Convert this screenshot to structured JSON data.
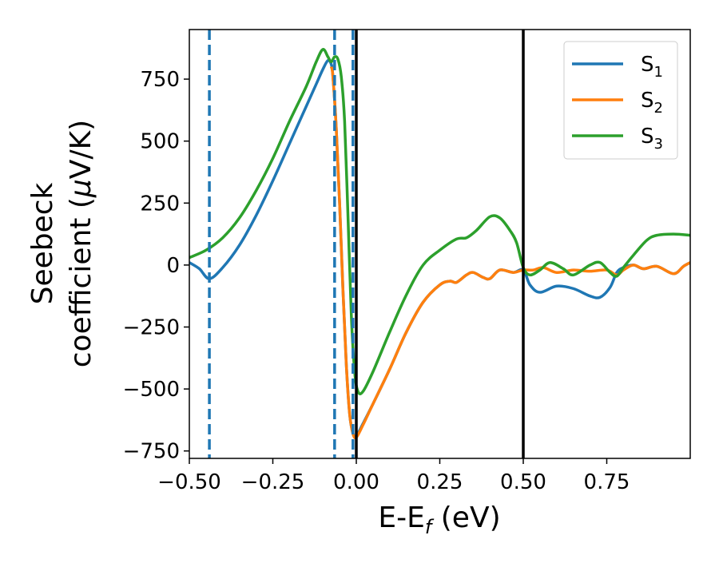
{
  "chart_data": {
    "type": "line",
    "xlabel": "E-E",
    "xlabel_sub": "f",
    "xlabel_unit": " (eV)",
    "ylabel_line1": "Seebeck",
    "ylabel_line2": "coefficient  (",
    "ylabel_mu": "μ",
    "ylabel_line2_end": "V/K)",
    "xlim": [
      -0.5,
      1.0
    ],
    "ylim": [
      -780,
      950
    ],
    "xticks": [
      -0.5,
      -0.25,
      0.0,
      0.25,
      0.5,
      0.75
    ],
    "xtick_labels": [
      "−0.50",
      "−0.25",
      "0.00",
      "0.25",
      "0.50",
      "0.75"
    ],
    "yticks": [
      -750,
      -500,
      -250,
      0,
      250,
      500,
      750
    ],
    "ytick_labels": [
      "−750",
      "−500",
      "−250",
      "0",
      "250",
      "500",
      "750"
    ],
    "grid": false,
    "legend_position": "top-right",
    "vlines": [
      {
        "x": -0.44,
        "style": "dashed",
        "color": "#1f77b4"
      },
      {
        "x": -0.065,
        "style": "dashed",
        "color": "#1f77b4"
      },
      {
        "x": -0.01,
        "style": "dashed",
        "color": "#1f77b4"
      },
      {
        "x": 0.0,
        "style": "solid",
        "color": "#000000"
      },
      {
        "x": 0.5,
        "style": "solid",
        "color": "#000000"
      }
    ],
    "series": [
      {
        "name": "S",
        "sub": "1",
        "color": "#1f77b4",
        "points": [
          [
            -0.5,
            10
          ],
          [
            -0.47,
            -15
          ],
          [
            -0.44,
            -55
          ],
          [
            -0.4,
            -10
          ],
          [
            -0.35,
            80
          ],
          [
            -0.3,
            200
          ],
          [
            -0.25,
            340
          ],
          [
            -0.2,
            490
          ],
          [
            -0.15,
            640
          ],
          [
            -0.12,
            730
          ],
          [
            -0.1,
            790
          ],
          [
            -0.085,
            825
          ],
          [
            -0.075,
            810
          ],
          [
            -0.07,
            760
          ],
          [
            -0.06,
            550
          ],
          [
            -0.05,
            250
          ],
          [
            -0.04,
            -100
          ],
          [
            -0.03,
            -400
          ],
          [
            -0.02,
            -600
          ],
          [
            -0.01,
            -680
          ],
          [
            0.0,
            -690
          ],
          [
            0.02,
            -640
          ],
          [
            0.05,
            -560
          ],
          [
            0.1,
            -420
          ],
          [
            0.15,
            -270
          ],
          [
            0.2,
            -150
          ],
          [
            0.25,
            -80
          ],
          [
            0.28,
            -65
          ],
          [
            0.3,
            -70
          ],
          [
            0.33,
            -40
          ],
          [
            0.35,
            -30
          ],
          [
            0.38,
            -50
          ],
          [
            0.4,
            -55
          ],
          [
            0.43,
            -20
          ],
          [
            0.47,
            -30
          ],
          [
            0.5,
            -20
          ],
          [
            0.52,
            -80
          ],
          [
            0.55,
            -110
          ],
          [
            0.6,
            -85
          ],
          [
            0.65,
            -95
          ],
          [
            0.7,
            -125
          ],
          [
            0.73,
            -130
          ],
          [
            0.76,
            -90
          ],
          [
            0.78,
            -30
          ],
          [
            0.8,
            -10
          ],
          [
            0.83,
            0
          ],
          [
            0.86,
            -15
          ],
          [
            0.9,
            -5
          ],
          [
            0.95,
            -35
          ],
          [
            0.98,
            -5
          ],
          [
            1.0,
            10
          ]
        ]
      },
      {
        "name": "S",
        "sub": "2",
        "color": "#ff7f0e",
        "points": [
          [
            -0.075,
            800
          ],
          [
            -0.07,
            760
          ],
          [
            -0.06,
            550
          ],
          [
            -0.05,
            250
          ],
          [
            -0.04,
            -100
          ],
          [
            -0.03,
            -400
          ],
          [
            -0.02,
            -600
          ],
          [
            -0.01,
            -680
          ],
          [
            0.0,
            -695
          ],
          [
            0.02,
            -645
          ],
          [
            0.05,
            -560
          ],
          [
            0.1,
            -420
          ],
          [
            0.15,
            -270
          ],
          [
            0.2,
            -150
          ],
          [
            0.25,
            -80
          ],
          [
            0.28,
            -65
          ],
          [
            0.3,
            -70
          ],
          [
            0.33,
            -40
          ],
          [
            0.35,
            -30
          ],
          [
            0.38,
            -50
          ],
          [
            0.4,
            -55
          ],
          [
            0.43,
            -20
          ],
          [
            0.47,
            -30
          ],
          [
            0.5,
            -20
          ],
          [
            0.53,
            -20
          ],
          [
            0.56,
            -10
          ],
          [
            0.6,
            -30
          ],
          [
            0.65,
            -20
          ],
          [
            0.7,
            -25
          ],
          [
            0.75,
            -20
          ],
          [
            0.78,
            -40
          ],
          [
            0.8,
            -20
          ],
          [
            0.83,
            0
          ],
          [
            0.86,
            -15
          ],
          [
            0.9,
            -5
          ],
          [
            0.95,
            -35
          ],
          [
            0.98,
            -5
          ],
          [
            1.0,
            10
          ]
        ]
      },
      {
        "name": "S",
        "sub": "3",
        "color": "#2ca02c",
        "points": [
          [
            -0.5,
            30
          ],
          [
            -0.45,
            60
          ],
          [
            -0.4,
            110
          ],
          [
            -0.35,
            190
          ],
          [
            -0.3,
            300
          ],
          [
            -0.25,
            430
          ],
          [
            -0.2,
            580
          ],
          [
            -0.15,
            720
          ],
          [
            -0.12,
            820
          ],
          [
            -0.1,
            870
          ],
          [
            -0.085,
            840
          ],
          [
            -0.075,
            820
          ],
          [
            -0.065,
            840
          ],
          [
            -0.055,
            830
          ],
          [
            -0.045,
            760
          ],
          [
            -0.035,
            580
          ],
          [
            -0.025,
            200
          ],
          [
            -0.015,
            -200
          ],
          [
            -0.005,
            -430
          ],
          [
            0.005,
            -510
          ],
          [
            0.02,
            -510
          ],
          [
            0.05,
            -430
          ],
          [
            0.1,
            -270
          ],
          [
            0.15,
            -120
          ],
          [
            0.2,
            0
          ],
          [
            0.25,
            60
          ],
          [
            0.3,
            105
          ],
          [
            0.33,
            110
          ],
          [
            0.36,
            140
          ],
          [
            0.4,
            195
          ],
          [
            0.43,
            190
          ],
          [
            0.46,
            140
          ],
          [
            0.48,
            90
          ],
          [
            0.5,
            -10
          ],
          [
            0.52,
            -40
          ],
          [
            0.55,
            -20
          ],
          [
            0.58,
            10
          ],
          [
            0.62,
            -15
          ],
          [
            0.65,
            -40
          ],
          [
            0.7,
            0
          ],
          [
            0.73,
            10
          ],
          [
            0.76,
            -30
          ],
          [
            0.78,
            -45
          ],
          [
            0.8,
            -10
          ],
          [
            0.83,
            40
          ],
          [
            0.87,
            100
          ],
          [
            0.9,
            120
          ],
          [
            0.95,
            125
          ],
          [
            1.0,
            120
          ]
        ]
      }
    ]
  }
}
